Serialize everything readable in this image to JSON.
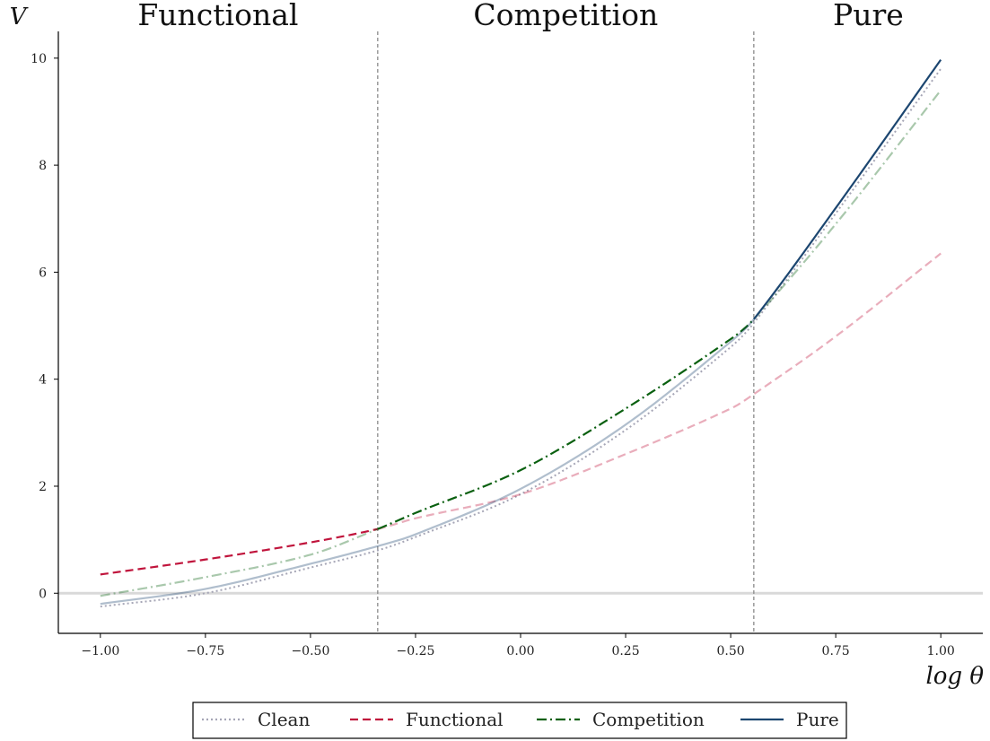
{
  "chart_data": {
    "type": "line",
    "xlim": [
      -1.1,
      1.1
    ],
    "ylim": [
      -0.75,
      10.5
    ],
    "xticks": [
      -1.0,
      -0.75,
      -0.5,
      -0.25,
      0.0,
      0.25,
      0.5,
      0.75,
      1.0
    ],
    "xtick_labels": [
      "−1.00",
      "−0.75",
      "−0.50",
      "−0.25",
      "0.00",
      "0.25",
      "0.50",
      "0.75",
      "1.00"
    ],
    "yticks": [
      0,
      2,
      4,
      6,
      8,
      10
    ],
    "ytick_labels": [
      "0",
      "2",
      "4",
      "6",
      "8",
      "10"
    ],
    "xlabel": "log θ",
    "ylabel": "V",
    "grid": false,
    "legend_position": "bottom-center",
    "regions": [
      {
        "label": "Functional",
        "x_start": -1.1,
        "x_end": -0.34
      },
      {
        "label": "Competition",
        "x_start": -0.34,
        "x_end": 0.555
      },
      {
        "label": "Pure",
        "x_start": 0.555,
        "x_end": 1.1
      }
    ],
    "boundaries": [
      -0.34,
      0.555
    ],
    "x": [
      -1.0,
      -0.75,
      -0.5,
      -0.34,
      -0.25,
      0.0,
      0.25,
      0.5,
      0.555,
      0.75,
      1.0
    ],
    "series": [
      {
        "name": "Clean",
        "color": "#a6a6b6",
        "style": "dotted",
        "active_range": [
          -1.0,
          1.0
        ],
        "values": [
          -0.25,
          0.0,
          0.48,
          0.8,
          1.05,
          1.85,
          3.05,
          4.6,
          5.05,
          7.1,
          9.8
        ]
      },
      {
        "name": "Functional",
        "color": "#c0143c",
        "style": "dashed",
        "active_range": [
          -1.0,
          -0.34
        ],
        "values": [
          0.35,
          0.63,
          0.95,
          1.2,
          1.4,
          1.85,
          2.6,
          3.45,
          3.72,
          4.8,
          6.35
        ]
      },
      {
        "name": "Competition",
        "color": "#0a6010",
        "style": "dashdot",
        "active_range": [
          -0.34,
          0.555
        ],
        "values": [
          -0.05,
          0.3,
          0.72,
          1.2,
          1.5,
          2.3,
          3.45,
          4.75,
          5.12,
          6.9,
          9.4
        ]
      },
      {
        "name": "Pure",
        "color": "#1c4670",
        "style": "solid",
        "active_range": [
          0.555,
          1.0
        ],
        "values": [
          -0.2,
          0.08,
          0.55,
          0.88,
          1.1,
          1.95,
          3.15,
          4.7,
          5.12,
          7.2,
          9.97
        ]
      }
    ]
  }
}
